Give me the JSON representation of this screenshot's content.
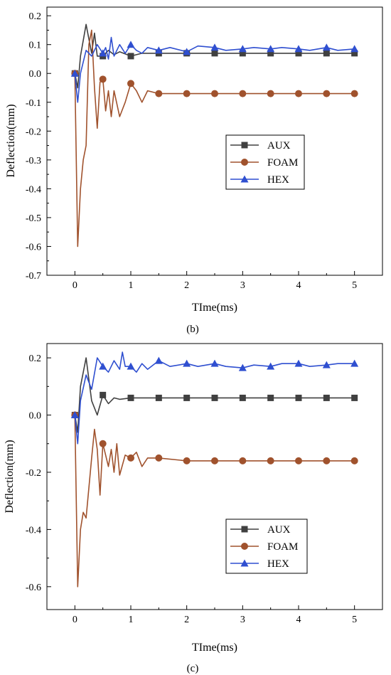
{
  "chart_data": [
    {
      "type": "line",
      "panel_label": "(b)",
      "xlabel": "TIme(ms)",
      "ylabel": "Deflection(mm)",
      "xlim": [
        -0.5,
        5.5
      ],
      "ylim": [
        -0.7,
        0.23
      ],
      "xticks": [
        "0",
        "1",
        "2",
        "3",
        "4",
        "5"
      ],
      "yticks": [
        "0.2",
        "0.1",
        "0.0",
        "-0.1",
        "-0.2",
        "-0.3",
        "-0.4",
        "-0.5",
        "-0.6",
        "-0.7"
      ],
      "legend_position": "center-right",
      "series": [
        {
          "name": "AUX",
          "color": "#404040",
          "marker": "square",
          "x": [
            0,
            0.05,
            0.1,
            0.2,
            0.3,
            0.35,
            0.4,
            0.5,
            0.6,
            0.7,
            0.8,
            1.0,
            1.2,
            1.5,
            2,
            2.5,
            3,
            3.5,
            4,
            4.5,
            5
          ],
          "y": [
            0,
            -0.05,
            0.06,
            0.17,
            0.07,
            0.14,
            0.06,
            0.06,
            0.08,
            0.065,
            0.075,
            0.06,
            0.07,
            0.07,
            0.07,
            0.07,
            0.07,
            0.07,
            0.07,
            0.07,
            0.07
          ]
        },
        {
          "name": "FOAM",
          "color": "#a0522d",
          "marker": "circle",
          "x": [
            0,
            0.05,
            0.1,
            0.15,
            0.2,
            0.25,
            0.3,
            0.35,
            0.4,
            0.45,
            0.5,
            0.55,
            0.6,
            0.65,
            0.7,
            0.8,
            0.9,
            1.0,
            1.1,
            1.2,
            1.3,
            1.5,
            2,
            2.5,
            3,
            3.5,
            4,
            4.5,
            5
          ],
          "y": [
            0,
            -0.6,
            -0.4,
            -0.3,
            -0.25,
            0.1,
            0.15,
            -0.05,
            -0.19,
            -0.03,
            -0.02,
            -0.13,
            -0.06,
            -0.15,
            -0.06,
            -0.15,
            -0.1,
            -0.035,
            -0.06,
            -0.1,
            -0.06,
            -0.07,
            -0.07,
            -0.07,
            -0.07,
            -0.07,
            -0.07,
            -0.07,
            -0.07
          ]
        },
        {
          "name": "HEX",
          "color": "#2f4fd0",
          "marker": "triangle",
          "x": [
            0,
            0.05,
            0.1,
            0.2,
            0.3,
            0.4,
            0.5,
            0.55,
            0.6,
            0.65,
            0.7,
            0.8,
            0.9,
            1.0,
            1.1,
            1.2,
            1.3,
            1.5,
            1.7,
            2.0,
            2.2,
            2.5,
            2.7,
            3.0,
            3.2,
            3.5,
            3.7,
            4.0,
            4.2,
            4.5,
            4.7,
            5.0
          ],
          "y": [
            0,
            -0.1,
            0.0,
            0.08,
            0.06,
            0.1,
            0.07,
            0.09,
            0.05,
            0.125,
            0.06,
            0.1,
            0.07,
            0.1,
            0.08,
            0.07,
            0.09,
            0.08,
            0.09,
            0.075,
            0.095,
            0.09,
            0.08,
            0.085,
            0.09,
            0.085,
            0.09,
            0.085,
            0.08,
            0.09,
            0.08,
            0.085
          ]
        }
      ]
    },
    {
      "type": "line",
      "panel_label": "(c)",
      "xlabel": "TIme(ms)",
      "ylabel": "Deflection(mm)",
      "xlim": [
        -0.5,
        5.5
      ],
      "ylim": [
        -0.68,
        0.25
      ],
      "xticks": [
        "0",
        "1",
        "2",
        "3",
        "4",
        "5"
      ],
      "yticks": [
        "0.2",
        "0.0",
        "-0.2",
        "-0.4",
        "-0.6"
      ],
      "legend_position": "bottom-right",
      "series": [
        {
          "name": "AUX",
          "color": "#404040",
          "marker": "square",
          "x": [
            0,
            0.05,
            0.1,
            0.2,
            0.3,
            0.4,
            0.5,
            0.6,
            0.7,
            0.8,
            1.0,
            1.2,
            1.5,
            2,
            2.5,
            3,
            3.5,
            4,
            4.5,
            5
          ],
          "y": [
            0,
            -0.06,
            0.1,
            0.2,
            0.05,
            0.0,
            0.07,
            0.04,
            0.06,
            0.055,
            0.06,
            0.06,
            0.06,
            0.06,
            0.06,
            0.06,
            0.06,
            0.06,
            0.06,
            0.06
          ]
        },
        {
          "name": "FOAM",
          "color": "#a0522d",
          "marker": "circle",
          "x": [
            0,
            0.05,
            0.1,
            0.15,
            0.2,
            0.3,
            0.35,
            0.4,
            0.45,
            0.5,
            0.6,
            0.65,
            0.7,
            0.75,
            0.8,
            0.9,
            1.0,
            1.1,
            1.2,
            1.3,
            1.5,
            2,
            2.5,
            3,
            3.5,
            4,
            4.5,
            5
          ],
          "y": [
            0,
            -0.6,
            -0.4,
            -0.34,
            -0.36,
            -0.15,
            -0.05,
            -0.12,
            -0.28,
            -0.1,
            -0.18,
            -0.12,
            -0.2,
            -0.1,
            -0.21,
            -0.14,
            -0.15,
            -0.13,
            -0.18,
            -0.15,
            -0.15,
            -0.16,
            -0.16,
            -0.16,
            -0.16,
            -0.16,
            -0.16,
            -0.16
          ]
        },
        {
          "name": "HEX",
          "color": "#2f4fd0",
          "marker": "triangle",
          "x": [
            0,
            0.05,
            0.1,
            0.2,
            0.3,
            0.4,
            0.5,
            0.6,
            0.7,
            0.8,
            0.85,
            0.9,
            1.0,
            1.1,
            1.2,
            1.3,
            1.5,
            1.7,
            2.0,
            2.2,
            2.5,
            2.7,
            3.0,
            3.2,
            3.5,
            3.7,
            4.0,
            4.2,
            4.5,
            4.7,
            5.0
          ],
          "y": [
            0,
            -0.1,
            0.05,
            0.14,
            0.09,
            0.2,
            0.17,
            0.15,
            0.19,
            0.16,
            0.22,
            0.17,
            0.17,
            0.15,
            0.18,
            0.16,
            0.19,
            0.17,
            0.18,
            0.17,
            0.18,
            0.17,
            0.165,
            0.175,
            0.17,
            0.18,
            0.18,
            0.17,
            0.175,
            0.18,
            0.18
          ]
        }
      ]
    }
  ]
}
